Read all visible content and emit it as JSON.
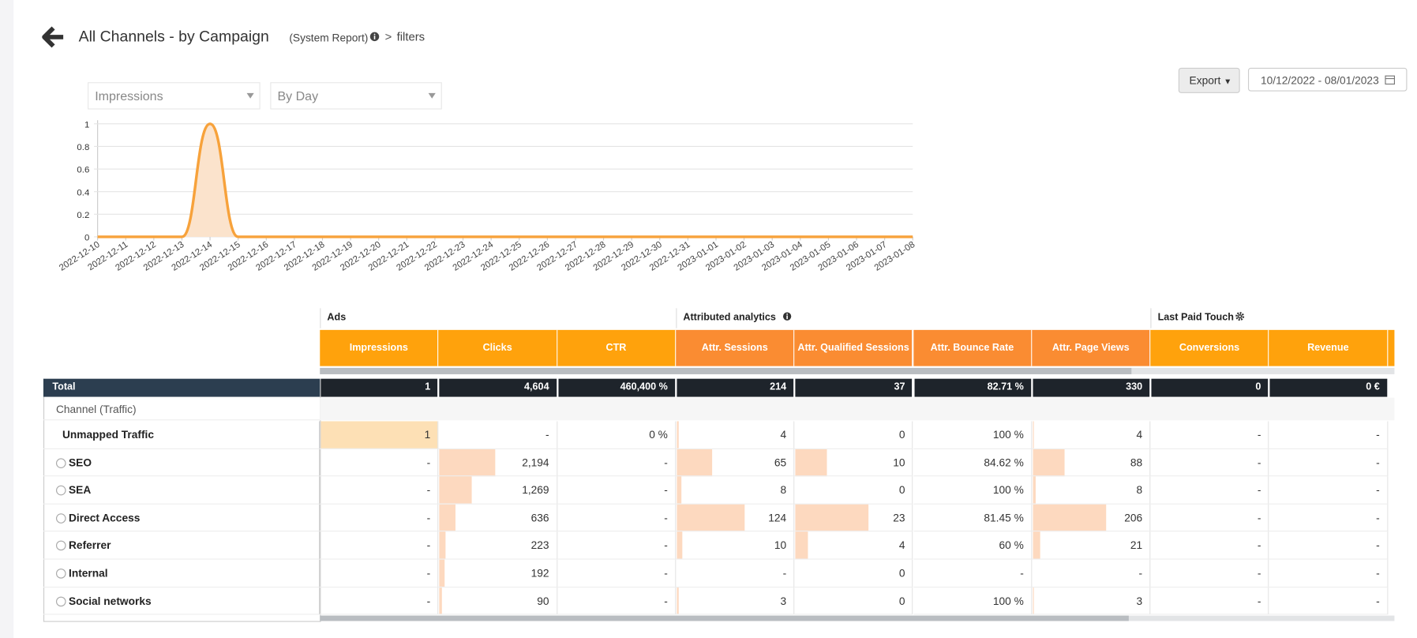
{
  "header": {
    "title": "All Channels - by Campaign",
    "subtitle": "(System Report)",
    "breadcrumb": "filters"
  },
  "controls": {
    "metric": "Impressions",
    "period": "By Day",
    "export": "Export",
    "date_range": "10/12/2022 - 08/01/2023"
  },
  "chart_data": {
    "type": "line",
    "color": "#f7a23b",
    "fill": "#fbe3cc",
    "x": [
      "2022-12-10",
      "2022-12-11",
      "2022-12-12",
      "2022-12-13",
      "2022-12-14",
      "2022-12-15",
      "2022-12-16",
      "2022-12-17",
      "2022-12-18",
      "2022-12-19",
      "2022-12-20",
      "2022-12-21",
      "2022-12-22",
      "2022-12-23",
      "2022-12-24",
      "2022-12-25",
      "2022-12-26",
      "2022-12-27",
      "2022-12-28",
      "2022-12-29",
      "2022-12-30",
      "2022-12-31",
      "2023-01-01",
      "2023-01-02",
      "2023-01-03",
      "2023-01-04",
      "2023-01-05",
      "2023-01-06",
      "2023-01-07",
      "2023-01-08"
    ],
    "values": [
      0,
      0,
      0,
      0,
      1,
      0,
      0,
      0,
      0,
      0,
      0,
      0,
      0,
      0,
      0,
      0,
      0,
      0,
      0,
      0,
      0,
      0,
      0,
      0,
      0,
      0,
      0,
      0,
      0,
      0
    ],
    "ylim": [
      0,
      1
    ],
    "yticks": [
      0,
      0.2,
      0.4,
      0.6,
      0.8,
      1
    ],
    "grid": true
  },
  "table": {
    "groups": [
      {
        "label": "Ads",
        "color": "#ffa20c",
        "columns": [
          {
            "label": "Impressions",
            "bars": true
          },
          {
            "label": "Clicks",
            "bars": true
          },
          {
            "label": "CTR",
            "bars": false
          }
        ]
      },
      {
        "label": "Attributed analytics",
        "color": "#fa8c32",
        "columns": [
          {
            "label": "Attr. Sessions",
            "bars": true
          },
          {
            "label": "Attr. Qualified Sessions",
            "bars": true
          },
          {
            "label": "Attr. Bounce Rate",
            "bars": false
          },
          {
            "label": "Attr. Page Views",
            "bars": true
          }
        ]
      },
      {
        "label": "Last Paid Touch",
        "color": "#ffa20c",
        "columns": [
          {
            "label": "Conversions",
            "bars": false
          },
          {
            "label": "Revenue",
            "bars": false
          }
        ]
      }
    ],
    "total_label": "Total",
    "total": [
      "1",
      "4,604",
      "460,400 %",
      "214",
      "37",
      "82.71 %",
      "330",
      "0",
      "0 €"
    ],
    "section_label": "Channel (Traffic)",
    "rows": [
      {
        "label": "Unmapped Traffic",
        "expandable": false,
        "cells": [
          "1",
          "-",
          "0 %",
          "4",
          "0",
          "100 %",
          "4",
          "-",
          "-"
        ]
      },
      {
        "label": "SEO",
        "expandable": true,
        "cells": [
          "-",
          "2,194",
          "-",
          "65",
          "10",
          "84.62 %",
          "88",
          "-",
          "-"
        ]
      },
      {
        "label": "SEA",
        "expandable": true,
        "cells": [
          "-",
          "1,269",
          "-",
          "8",
          "0",
          "100 %",
          "8",
          "-",
          "-"
        ]
      },
      {
        "label": "Direct Access",
        "expandable": true,
        "cells": [
          "-",
          "636",
          "-",
          "124",
          "23",
          "81.45 %",
          "206",
          "-",
          "-"
        ]
      },
      {
        "label": "Referrer",
        "expandable": true,
        "cells": [
          "-",
          "223",
          "-",
          "10",
          "4",
          "60 %",
          "21",
          "-",
          "-"
        ]
      },
      {
        "label": "Internal",
        "expandable": true,
        "cells": [
          "-",
          "192",
          "-",
          "-",
          "0",
          "-",
          "-",
          "-",
          "-"
        ]
      },
      {
        "label": "Social networks",
        "expandable": true,
        "cells": [
          "-",
          "90",
          "-",
          "3",
          "0",
          "100 %",
          "3",
          "-",
          "-"
        ]
      }
    ]
  }
}
